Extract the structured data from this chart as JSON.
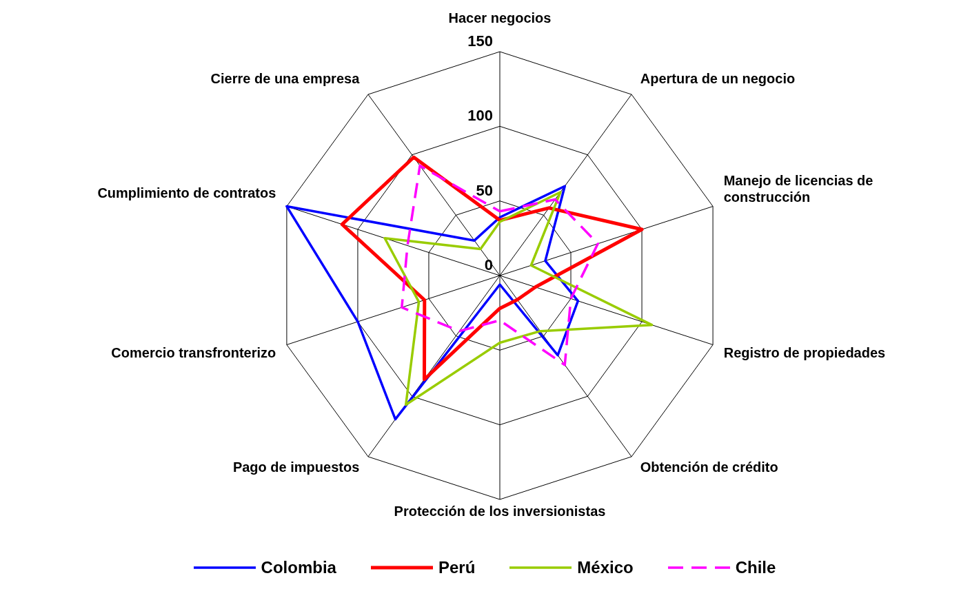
{
  "chart_data": {
    "type": "radar",
    "categories": [
      "Hacer negocios",
      "Apertura de un negocio",
      "Manejo de licencias de construcción",
      "Registro de propiedades",
      "Obtención de crédito",
      "Protección de los inversionistas",
      "Pago de impuestos",
      "Comercio transfronterizo",
      "Cumplimiento de contratos",
      "Cierre de una empresa"
    ],
    "series": [
      {
        "name": "Colombia",
        "color": "#0000ff",
        "line_style": "solid",
        "values": [
          39,
          74,
          32,
          55,
          66,
          6,
          119,
          100,
          150,
          29
        ]
      },
      {
        "name": "Perú",
        "color": "#ff0000",
        "line_style": "solid",
        "values": [
          37,
          56,
          100,
          25,
          20,
          22,
          86,
          53,
          111,
          98
        ]
      },
      {
        "name": "México",
        "color": "#99cc00",
        "line_style": "solid",
        "values": [
          36,
          69,
          22,
          107,
          46,
          45,
          107,
          57,
          81,
          22
        ]
      },
      {
        "name": "Chile",
        "color": "#ff00ff",
        "line_style": "dashed",
        "values": [
          43,
          63,
          69,
          50,
          74,
          30,
          46,
          69,
          65,
          91
        ]
      }
    ],
    "ylim": [
      0,
      150
    ],
    "yticks": [
      0,
      50,
      100,
      150
    ],
    "grid": true,
    "legend": "bottom",
    "marker": "none"
  }
}
